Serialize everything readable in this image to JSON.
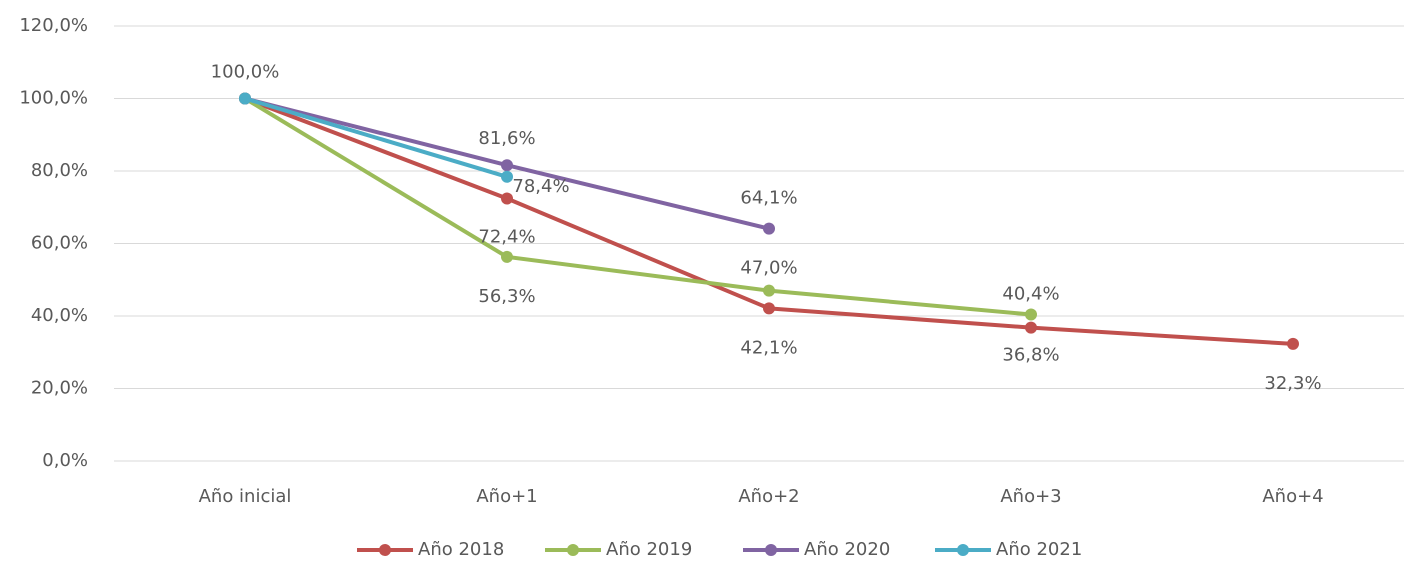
{
  "chart_data": {
    "type": "line",
    "categories": [
      "Año inicial",
      "Año+1",
      "Año+2",
      "Año+3",
      "Año+4"
    ],
    "series": [
      {
        "name": "Año 2018",
        "color": "#c0504d",
        "values": [
          100,
          72.4,
          42.1,
          36.8,
          32.3
        ],
        "value_labels": [
          "100,0%",
          "72,4%",
          "42,1%",
          "36,8%",
          "32,3%"
        ]
      },
      {
        "name": "Año 2019",
        "color": "#9bbb59",
        "values": [
          100,
          56.3,
          47.0,
          40.4,
          null
        ],
        "value_labels": [
          null,
          "56,3%",
          "47,0%",
          "40,4%",
          null
        ]
      },
      {
        "name": "Año 2020",
        "color": "#8064a2",
        "values": [
          100,
          81.6,
          64.1,
          null,
          null
        ],
        "value_labels": [
          null,
          "81,6%",
          "64,1%",
          null,
          null
        ]
      },
      {
        "name": "Año 2021",
        "color": "#4bacc6",
        "values": [
          100,
          78.4,
          null,
          null,
          null
        ],
        "value_labels": [
          null,
          "78,4%",
          null,
          null,
          null
        ]
      }
    ],
    "ylim": [
      0,
      120
    ],
    "yticks": [
      {
        "value": 0,
        "label": "0,0%"
      },
      {
        "value": 20,
        "label": "20,0%"
      },
      {
        "value": 40,
        "label": "40,0%"
      },
      {
        "value": 60,
        "label": "60,0%"
      },
      {
        "value": 80,
        "label": "80,0%"
      },
      {
        "value": 100,
        "label": "100,0%"
      },
      {
        "value": 120,
        "label": "120,0%"
      }
    ],
    "grid": true,
    "legend": "bottom"
  }
}
